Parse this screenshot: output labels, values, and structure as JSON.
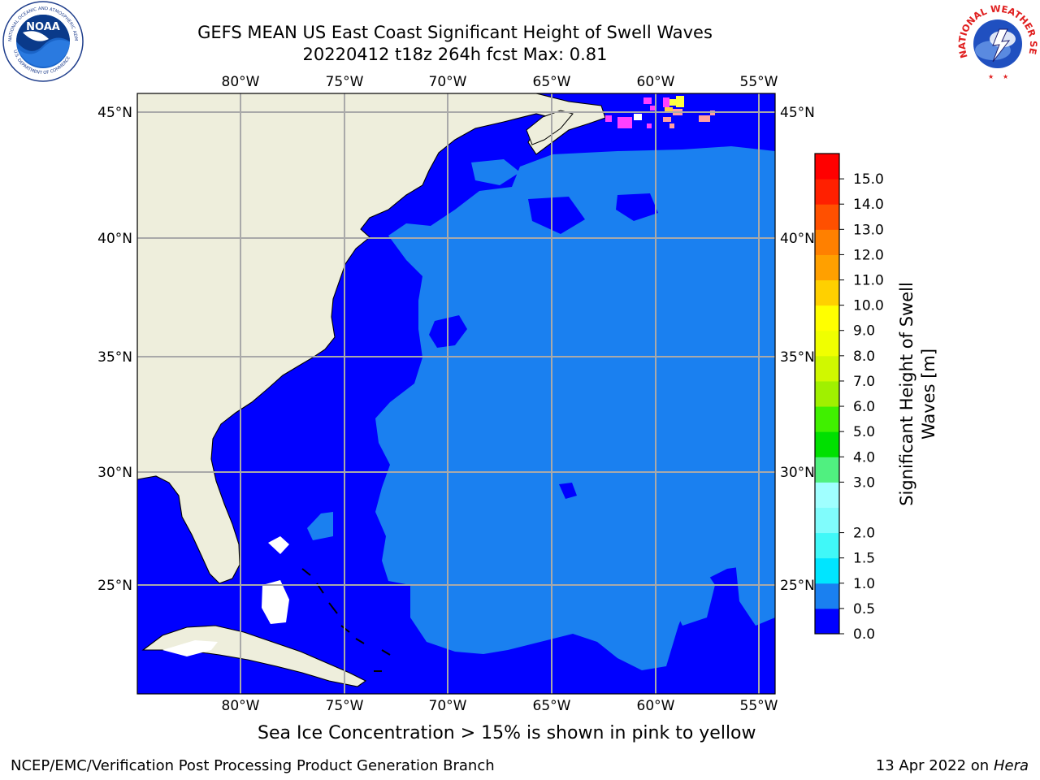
{
  "header": {
    "title_line1": "GEFS MEAN US East Coast Significant Height of Swell Waves",
    "title_line2": "20220412 t18z 264h fcst   Max: 0.81"
  },
  "logos": {
    "left": "noaa-logo",
    "left_text": "NOAA",
    "left_ring_top": "NATIONAL OCEANIC AND ATMOSPHERIC ADMINISTRATION",
    "left_ring_bottom": "U.S. DEPARTMENT OF COMMERCE",
    "right": "national-weather-service-logo",
    "right_ring_text": "NATIONAL WEATHER SERVICE"
  },
  "map": {
    "lon_range": [
      -85,
      -54
    ],
    "lat_range": [
      20.5,
      46.5
    ],
    "lon_ticks": [
      "80°W",
      "75°W",
      "70°W",
      "65°W",
      "60°W",
      "55°W"
    ],
    "lat_ticks": [
      "45°N",
      "40°N",
      "35°N",
      "30°N",
      "25°N"
    ],
    "grid": true,
    "colors": {
      "land": "#eeeedc",
      "ocean_0_0.5": "#0000ff",
      "ocean_0.5_1.0": "#1a80f0",
      "no_data": "#ffffff",
      "gridline": "#a9a9a9",
      "ice": [
        "#ff40ff",
        "#ffa0a0",
        "#ffd040",
        "#ffff40"
      ]
    }
  },
  "colorbar": {
    "label_line1": "Significant Height of Swell",
    "label_line2": "Waves [m]",
    "levels": [
      "0.0",
      "0.5",
      "1.0",
      "1.5",
      "2.0",
      "2.5",
      "3.0",
      "4.0",
      "5.0",
      "6.0",
      "7.0",
      "8.0",
      "9.0",
      "10.0",
      "11.0",
      "12.0",
      "13.0",
      "14.0",
      "15.0"
    ],
    "tick_labels": [
      "0.0",
      "0.5",
      "1.0",
      "1.5",
      "2.0",
      "3.0",
      "4.0",
      "5.0",
      "6.0",
      "7.0",
      "8.0",
      "9.0",
      "10.0",
      "11.0",
      "12.0",
      "13.0",
      "14.0",
      "15.0"
    ],
    "colors": [
      "#0000ff",
      "#1a80f0",
      "#00e5ff",
      "#40f8f8",
      "#80fcfc",
      "#a0ffff",
      "#50f080",
      "#00e000",
      "#40f000",
      "#a0f000",
      "#d0f800",
      "#f0ff00",
      "#ffff00",
      "#ffd000",
      "#ffa000",
      "#ff8000",
      "#ff5000",
      "#ff2000",
      "#ff0000"
    ]
  },
  "footer": {
    "ice_note": "Sea Ice Concentration > 15% is shown in pink to yellow",
    "left": "NCEP/EMC/Verification Post Processing Product Generation Branch",
    "right_date": "13 Apr 2022 on",
    "right_machine": "Hera"
  }
}
